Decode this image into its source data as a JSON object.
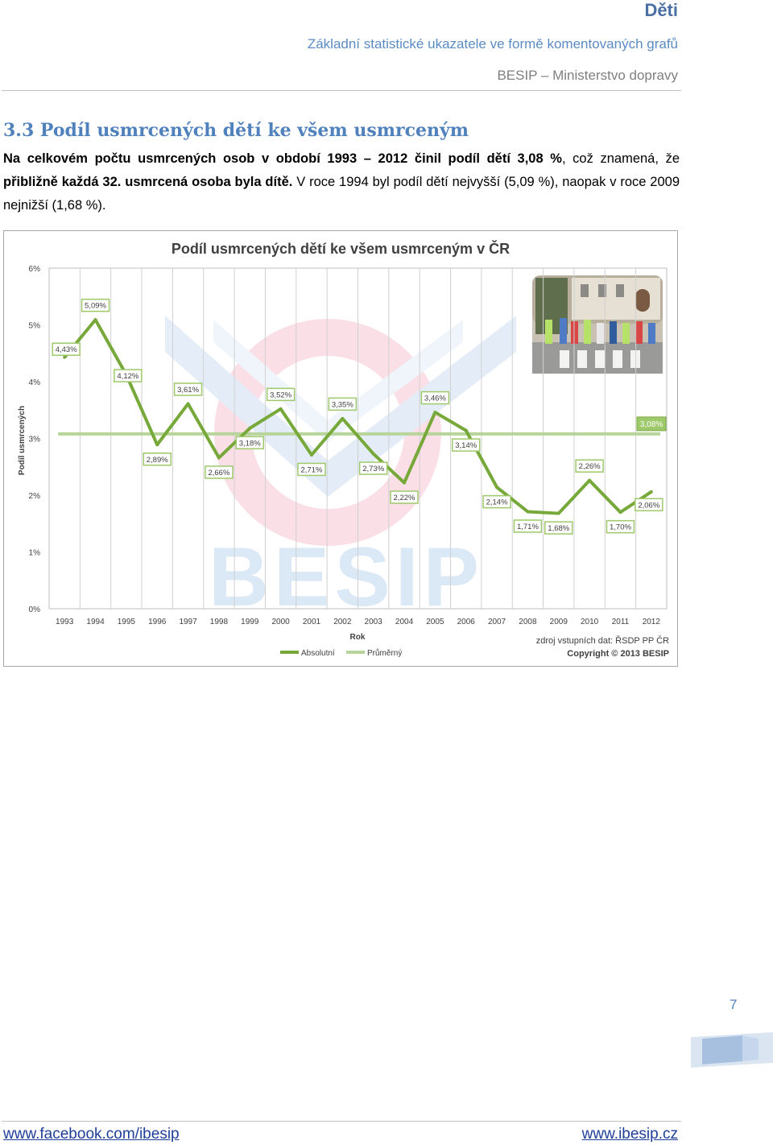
{
  "header": {
    "title": "Děti",
    "subtitle": "Základní statistické ukazatele ve formě komentovaných grafů",
    "org": "BESIP – Ministerstvo dopravy"
  },
  "section": {
    "title": "3.3 Podíl usmrcených dětí ke všem usmrceným",
    "para_bold_1": "Na celkovém počtu usmrcených osob v období 1993 – 2012 činil podíl dětí 3,08 %",
    "para_text_1": ", což znamená, že ",
    "para_bold_2": "přibližně každá 32. usmrcená osoba byla dítě.",
    "para_text_2": " V roce 1994 byl podíl dětí nejvyšší (5,09 %), naopak v roce 2009 nejnižší (1,68 %)."
  },
  "chart_data": {
    "type": "line",
    "title": "Podíl usmrcených dětí ke všem usmrceným v ČR",
    "xlabel": "Rok",
    "ylabel": "Podíl usmrcených",
    "categories": [
      "1993",
      "1994",
      "1995",
      "1996",
      "1997",
      "1998",
      "1999",
      "2000",
      "2001",
      "2002",
      "2003",
      "2004",
      "2005",
      "2006",
      "2007",
      "2008",
      "2009",
      "2010",
      "2011",
      "2012"
    ],
    "series": [
      {
        "name": "Absolutní",
        "color": "#77a83a",
        "values": [
          4.43,
          5.09,
          4.12,
          2.89,
          3.61,
          2.66,
          3.18,
          3.52,
          2.71,
          3.35,
          2.73,
          2.22,
          3.46,
          3.14,
          2.14,
          1.71,
          1.68,
          2.26,
          1.7,
          2.06
        ],
        "labels": [
          "4,43%",
          "5,09%",
          "4,12%",
          "2,89%",
          "3,61%",
          "2,66%",
          "3,18%",
          "3,52%",
          "2,71%",
          "3,35%",
          "2,73%",
          "2,22%",
          "3,46%",
          "3,14%",
          "2,14%",
          "1,71%",
          "1,68%",
          "2,26%",
          "1,70%",
          "2,06%"
        ]
      },
      {
        "name": "Průměrný",
        "color": "#b7d59a",
        "value": 3.08,
        "label": "3,08%"
      }
    ],
    "ylim": [
      0,
      6
    ],
    "yticks": [
      "0%",
      "1%",
      "2%",
      "3%",
      "4%",
      "5%",
      "6%"
    ],
    "grid": true,
    "legend": "bottom-left",
    "source": "zdroj vstupních dat: ŘSDP PP ČR",
    "copyright": "Copyright © 2013 BESIP",
    "watermark": "BESIP"
  },
  "footer": {
    "page_number": "7",
    "link_left": "www.facebook.com/ibesip",
    "link_right": "www.ibesip.cz"
  }
}
